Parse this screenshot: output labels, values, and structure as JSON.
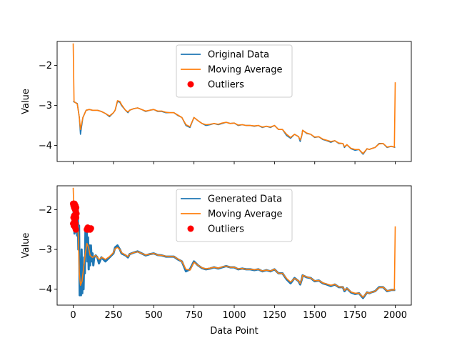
{
  "chart_data": [
    {
      "type": "line",
      "title": "",
      "xlabel": "",
      "ylabel": "Value",
      "xlim": [
        -100,
        2100
      ],
      "ylim": [
        -4.4,
        -1.4
      ],
      "xticks": [
        0,
        250,
        500,
        750,
        1000,
        1250,
        1500,
        1750,
        2000
      ],
      "xtick_labels_visible": false,
      "yticks": [
        -4,
        -3,
        -2
      ],
      "ytick_labels": [
        "−4",
        "−3",
        "−2"
      ],
      "legend_position": "top-center",
      "series": [
        {
          "name": "Original Data",
          "color": "#1f77b4",
          "x": [
            0,
            10,
            25,
            38,
            45,
            60,
            80,
            100,
            120,
            150,
            175,
            200,
            225,
            250,
            260,
            275,
            290,
            300,
            325,
            340,
            350,
            375,
            400,
            425,
            450,
            475,
            500,
            525,
            550,
            575,
            600,
            625,
            650,
            675,
            700,
            725,
            750,
            775,
            800,
            825,
            850,
            875,
            900,
            925,
            950,
            975,
            1000,
            1025,
            1050,
            1075,
            1100,
            1125,
            1150,
            1175,
            1200,
            1225,
            1250,
            1275,
            1300,
            1325,
            1350,
            1375,
            1400,
            1410,
            1420,
            1425,
            1450,
            1475,
            1500,
            1525,
            1550,
            1575,
            1600,
            1625,
            1650,
            1675,
            1685,
            1700,
            1725,
            1750,
            1775,
            1800,
            1825,
            1840,
            1850,
            1875,
            1900,
            1925,
            1950,
            1975,
            2000
          ],
          "y": [
            -2.9,
            -2.92,
            -2.95,
            -3.3,
            -3.72,
            -3.3,
            -3.12,
            -3.1,
            -3.12,
            -3.12,
            -3.15,
            -3.2,
            -3.28,
            -3.18,
            -3.12,
            -2.9,
            -2.92,
            -3.0,
            -3.12,
            -3.18,
            -3.12,
            -3.08,
            -3.06,
            -3.1,
            -3.15,
            -3.12,
            -3.1,
            -3.15,
            -3.15,
            -3.18,
            -3.18,
            -3.18,
            -3.25,
            -3.3,
            -3.5,
            -3.55,
            -3.3,
            -3.38,
            -3.45,
            -3.5,
            -3.48,
            -3.45,
            -3.48,
            -3.45,
            -3.42,
            -3.45,
            -3.44,
            -3.5,
            -3.48,
            -3.5,
            -3.5,
            -3.52,
            -3.5,
            -3.55,
            -3.52,
            -3.55,
            -3.5,
            -3.6,
            -3.6,
            -3.75,
            -3.82,
            -3.72,
            -3.78,
            -3.9,
            -3.75,
            -3.62,
            -3.7,
            -3.72,
            -3.8,
            -3.78,
            -3.85,
            -3.88,
            -3.92,
            -3.88,
            -3.95,
            -3.95,
            -4.05,
            -3.98,
            -4.08,
            -4.12,
            -4.1,
            -4.22,
            -4.08,
            -4.1,
            -4.08,
            -4.05,
            -3.95,
            -3.95,
            -4.05,
            -4.02,
            -4.05
          ]
        },
        {
          "name": "Moving Average",
          "color": "#ff7f0e",
          "x": [
            0,
            5,
            10,
            25,
            38,
            45,
            60,
            80,
            100,
            120,
            150,
            175,
            200,
            225,
            250,
            260,
            275,
            290,
            300,
            325,
            340,
            350,
            375,
            400,
            425,
            450,
            475,
            500,
            525,
            550,
            575,
            600,
            625,
            650,
            675,
            700,
            725,
            750,
            775,
            800,
            825,
            850,
            875,
            900,
            925,
            950,
            975,
            1000,
            1025,
            1050,
            1075,
            1100,
            1125,
            1150,
            1175,
            1200,
            1225,
            1250,
            1275,
            1300,
            1325,
            1350,
            1375,
            1400,
            1410,
            1420,
            1425,
            1450,
            1475,
            1500,
            1525,
            1550,
            1575,
            1600,
            1625,
            1650,
            1675,
            1685,
            1700,
            1725,
            1750,
            1775,
            1800,
            1825,
            1840,
            1850,
            1875,
            1900,
            1925,
            1950,
            1975,
            1995,
            2000
          ],
          "y": [
            -1.45,
            -2.9,
            -2.92,
            -2.96,
            -3.3,
            -3.6,
            -3.3,
            -3.12,
            -3.1,
            -3.12,
            -3.12,
            -3.15,
            -3.2,
            -3.26,
            -3.18,
            -3.12,
            -2.88,
            -2.9,
            -2.98,
            -3.12,
            -3.16,
            -3.12,
            -3.08,
            -3.06,
            -3.1,
            -3.14,
            -3.12,
            -3.1,
            -3.14,
            -3.14,
            -3.17,
            -3.18,
            -3.18,
            -3.24,
            -3.3,
            -3.48,
            -3.53,
            -3.3,
            -3.38,
            -3.45,
            -3.48,
            -3.47,
            -3.45,
            -3.47,
            -3.44,
            -3.42,
            -3.45,
            -3.44,
            -3.49,
            -3.48,
            -3.5,
            -3.5,
            -3.51,
            -3.5,
            -3.54,
            -3.52,
            -3.54,
            -3.5,
            -3.6,
            -3.6,
            -3.72,
            -3.8,
            -3.72,
            -3.78,
            -3.86,
            -3.75,
            -3.62,
            -3.69,
            -3.72,
            -3.79,
            -3.78,
            -3.84,
            -3.87,
            -3.9,
            -3.88,
            -3.94,
            -3.95,
            -4.03,
            -3.98,
            -4.07,
            -4.1,
            -4.1,
            -4.2,
            -4.08,
            -4.1,
            -4.08,
            -4.05,
            -3.96,
            -3.95,
            -4.04,
            -4.02,
            -4.04,
            -2.42
          ]
        }
      ],
      "outliers": {
        "name": "Outliers",
        "color": "#ff0000",
        "x": [],
        "y": []
      }
    },
    {
      "type": "line",
      "title": "",
      "xlabel": "Data Point",
      "ylabel": "Value",
      "xlim": [
        -100,
        2100
      ],
      "ylim": [
        -4.4,
        -1.4
      ],
      "xticks": [
        0,
        250,
        500,
        750,
        1000,
        1250,
        1500,
        1750,
        2000
      ],
      "xtick_labels": [
        "0",
        "250",
        "500",
        "750",
        "1000",
        "1250",
        "1500",
        "1750",
        "2000"
      ],
      "yticks": [
        -4,
        -3,
        -2
      ],
      "ytick_labels": [
        "−4",
        "−3",
        "−2"
      ],
      "legend_position": "top-center",
      "series": [
        {
          "name": "Generated Data",
          "color": "#1f77b4",
          "x": [
            0,
            4,
            8,
            12,
            16,
            20,
            24,
            28,
            32,
            36,
            40,
            44,
            48,
            52,
            56,
            60,
            64,
            68,
            72,
            76,
            80,
            84,
            88,
            92,
            96,
            100,
            105,
            110,
            115,
            120,
            125,
            130,
            140,
            150,
            160,
            175,
            200,
            225,
            250,
            260,
            275,
            290,
            300,
            325,
            340,
            350,
            375,
            400,
            425,
            450,
            475,
            500,
            525,
            550,
            575,
            600,
            625,
            650,
            675,
            700,
            725,
            750,
            775,
            800,
            825,
            850,
            875,
            900,
            925,
            950,
            975,
            1000,
            1025,
            1050,
            1075,
            1100,
            1125,
            1150,
            1175,
            1200,
            1225,
            1250,
            1275,
            1300,
            1325,
            1350,
            1375,
            1400,
            1410,
            1420,
            1425,
            1450,
            1475,
            1500,
            1525,
            1550,
            1575,
            1600,
            1625,
            1650,
            1675,
            1685,
            1700,
            1725,
            1750,
            1775,
            1800,
            1825,
            1840,
            1850,
            1875,
            1900,
            1925,
            1950,
            1975,
            2000
          ],
          "y": [
            -2.4,
            -1.9,
            -2.6,
            -1.95,
            -2.5,
            -2.1,
            -2.65,
            -2.0,
            -3.0,
            -2.4,
            -4.15,
            -3.8,
            -4.15,
            -3.0,
            -4.1,
            -3.4,
            -4.0,
            -3.2,
            -3.6,
            -2.5,
            -3.1,
            -2.5,
            -3.3,
            -2.7,
            -3.5,
            -2.9,
            -3.4,
            -2.9,
            -3.3,
            -3.1,
            -3.4,
            -3.2,
            -3.15,
            -3.2,
            -3.35,
            -3.2,
            -3.3,
            -3.2,
            -3.1,
            -2.95,
            -2.9,
            -3.0,
            -3.1,
            -3.15,
            -3.2,
            -3.12,
            -3.08,
            -3.05,
            -3.1,
            -3.15,
            -3.12,
            -3.1,
            -3.14,
            -3.15,
            -3.18,
            -3.18,
            -3.18,
            -3.25,
            -3.3,
            -3.55,
            -3.5,
            -3.3,
            -3.4,
            -3.47,
            -3.5,
            -3.48,
            -3.45,
            -3.48,
            -3.45,
            -3.42,
            -3.45,
            -3.45,
            -3.5,
            -3.48,
            -3.5,
            -3.5,
            -3.52,
            -3.5,
            -3.55,
            -3.52,
            -3.55,
            -3.5,
            -3.6,
            -3.6,
            -3.75,
            -3.85,
            -3.72,
            -3.8,
            -3.88,
            -3.75,
            -3.65,
            -3.7,
            -3.72,
            -3.8,
            -3.78,
            -3.85,
            -3.88,
            -3.92,
            -3.88,
            -3.95,
            -3.95,
            -4.05,
            -3.98,
            -4.08,
            -4.12,
            -4.1,
            -4.22,
            -4.08,
            -4.1,
            -4.08,
            -4.05,
            -3.95,
            -3.95,
            -4.05,
            -4.02,
            -4.02
          ]
        },
        {
          "name": "Moving Average",
          "color": "#ff7f0e",
          "x": [
            0,
            5,
            10,
            20,
            30,
            38,
            45,
            55,
            65,
            75,
            85,
            95,
            105,
            120,
            140,
            160,
            180,
            200,
            225,
            250,
            260,
            275,
            290,
            300,
            325,
            340,
            350,
            375,
            400,
            425,
            450,
            475,
            500,
            525,
            550,
            575,
            600,
            625,
            650,
            675,
            700,
            725,
            750,
            775,
            800,
            825,
            850,
            875,
            900,
            925,
            950,
            975,
            1000,
            1025,
            1050,
            1075,
            1100,
            1125,
            1150,
            1175,
            1200,
            1225,
            1250,
            1275,
            1300,
            1325,
            1350,
            1375,
            1400,
            1410,
            1420,
            1425,
            1450,
            1475,
            1500,
            1525,
            1550,
            1575,
            1600,
            1625,
            1650,
            1675,
            1685,
            1700,
            1725,
            1750,
            1775,
            1800,
            1825,
            1840,
            1850,
            1875,
            1900,
            1925,
            1950,
            1975,
            1995,
            2000
          ],
          "y": [
            -1.45,
            -2.2,
            -2.35,
            -2.3,
            -2.45,
            -3.6,
            -3.9,
            -3.8,
            -3.45,
            -3.1,
            -2.85,
            -2.95,
            -3.15,
            -3.2,
            -3.15,
            -3.25,
            -3.2,
            -3.25,
            -3.18,
            -3.08,
            -2.98,
            -2.95,
            -3.0,
            -3.08,
            -3.14,
            -3.18,
            -3.12,
            -3.08,
            -3.06,
            -3.1,
            -3.14,
            -3.12,
            -3.1,
            -3.14,
            -3.15,
            -3.17,
            -3.18,
            -3.18,
            -3.24,
            -3.3,
            -3.5,
            -3.52,
            -3.32,
            -3.4,
            -3.46,
            -3.49,
            -3.47,
            -3.45,
            -3.47,
            -3.44,
            -3.42,
            -3.45,
            -3.45,
            -3.49,
            -3.48,
            -3.5,
            -3.5,
            -3.51,
            -3.5,
            -3.54,
            -3.52,
            -3.54,
            -3.5,
            -3.6,
            -3.6,
            -3.73,
            -3.82,
            -3.73,
            -3.79,
            -3.86,
            -3.75,
            -3.65,
            -3.69,
            -3.72,
            -3.79,
            -3.78,
            -3.84,
            -3.87,
            -3.9,
            -3.88,
            -3.94,
            -3.95,
            -4.03,
            -3.98,
            -4.07,
            -4.1,
            -4.1,
            -4.2,
            -4.08,
            -4.1,
            -4.08,
            -4.05,
            -3.96,
            -3.95,
            -4.04,
            -4.02,
            -4.02,
            -2.42
          ]
        }
      ],
      "outliers": {
        "name": "Outliers",
        "color": "#ff0000",
        "x": [
          0,
          2,
          4,
          6,
          8,
          10,
          12,
          14,
          16,
          18,
          20,
          0,
          4,
          8,
          12,
          16,
          2,
          6,
          10,
          14,
          18,
          85,
          90,
          95,
          100,
          105,
          110
        ],
        "y": [
          -1.85,
          -1.9,
          -1.88,
          -1.95,
          -1.85,
          -1.92,
          -2.0,
          -1.9,
          -2.05,
          -1.95,
          -2.1,
          -2.35,
          -2.4,
          -2.3,
          -2.45,
          -2.5,
          -2.2,
          -2.15,
          -2.25,
          -2.35,
          -2.2,
          -2.5,
          -2.45,
          -2.5,
          -2.48,
          -2.5,
          -2.47
        ]
      }
    }
  ]
}
